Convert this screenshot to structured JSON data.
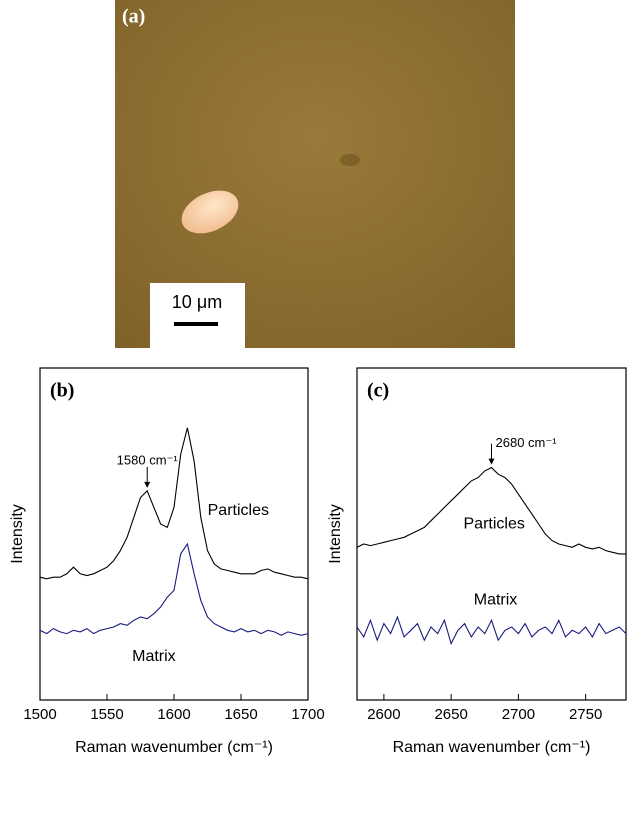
{
  "image_panel": {
    "label": "(a)",
    "scale_bar": "10 μm"
  },
  "chart_data": [
    {
      "type": "line",
      "panel_label": "(b)",
      "x_label": "Raman wavenumber (cm⁻¹)",
      "y_label": "Intensity",
      "xlim": [
        1500,
        1700
      ],
      "xticks": [
        1500,
        1550,
        1600,
        1650,
        1700
      ],
      "ylim": [
        0,
        100
      ],
      "x": [
        1500,
        1505,
        1510,
        1515,
        1520,
        1525,
        1530,
        1535,
        1540,
        1545,
        1550,
        1555,
        1560,
        1565,
        1570,
        1575,
        1580,
        1585,
        1590,
        1595,
        1600,
        1605,
        1610,
        1615,
        1620,
        1625,
        1630,
        1635,
        1640,
        1645,
        1650,
        1655,
        1660,
        1665,
        1670,
        1675,
        1680,
        1685,
        1690,
        1695,
        1700
      ],
      "series": [
        {
          "name": "Particles",
          "color": "#000000",
          "values": [
            37,
            36.5,
            37,
            37,
            38,
            40,
            38,
            37.5,
            38,
            39,
            40,
            42,
            45,
            49,
            55,
            61,
            63,
            58,
            53,
            52,
            58,
            74,
            82,
            72,
            55,
            45,
            41,
            39.5,
            39,
            38.5,
            38,
            38,
            38,
            39,
            39.5,
            38.5,
            38,
            37.5,
            37,
            37,
            36.5
          ]
        },
        {
          "name": "Matrix",
          "color": "#1a1a80",
          "values": [
            21,
            20,
            21.5,
            20.5,
            20,
            21,
            20.5,
            21.5,
            20,
            21,
            21.5,
            22,
            23,
            22.5,
            24,
            25,
            24.5,
            26,
            28,
            31,
            33,
            44,
            47,
            38,
            30,
            25,
            23,
            22,
            21,
            20.5,
            21.5,
            20.5,
            21,
            20,
            21,
            20.5,
            19.5,
            20.5,
            20,
            19.5,
            20
          ]
        }
      ],
      "annotations": [
        {
          "text": "1580 cm⁻¹",
          "x": 1580
        }
      ]
    },
    {
      "type": "line",
      "panel_label": "(c)",
      "x_label": "Raman wavenumber (cm⁻¹)",
      "y_label": "Intensity",
      "xlim": [
        2580,
        2780
      ],
      "xticks": [
        2600,
        2650,
        2700,
        2750
      ],
      "ylim": [
        0,
        100
      ],
      "x": [
        2580,
        2585,
        2590,
        2595,
        2600,
        2605,
        2610,
        2615,
        2620,
        2625,
        2630,
        2635,
        2640,
        2645,
        2650,
        2655,
        2660,
        2665,
        2670,
        2675,
        2680,
        2685,
        2690,
        2695,
        2700,
        2705,
        2710,
        2715,
        2720,
        2725,
        2730,
        2735,
        2740,
        2745,
        2750,
        2755,
        2760,
        2765,
        2770,
        2775,
        2780
      ],
      "series": [
        {
          "name": "Particles",
          "color": "#000000",
          "values": [
            46,
            47,
            46.5,
            47,
            47.5,
            48,
            48.5,
            49,
            50,
            51,
            52,
            54,
            56,
            58,
            60,
            62,
            64,
            66,
            67,
            69,
            70,
            68,
            67,
            65,
            62,
            59,
            56,
            53,
            50,
            48,
            47,
            46.5,
            46,
            47,
            46,
            45.5,
            46,
            45,
            44.5,
            44,
            44
          ]
        },
        {
          "name": "Matrix",
          "color": "#1a1a80",
          "values": [
            22,
            19,
            24,
            18,
            23,
            20,
            25,
            19,
            21,
            23,
            18,
            22,
            20,
            24,
            17,
            21,
            23,
            19,
            22,
            20,
            24,
            18,
            21,
            22,
            20,
            23,
            19,
            21,
            22,
            20,
            24,
            19,
            21,
            20,
            22,
            19,
            23,
            20,
            21,
            22,
            20
          ]
        }
      ],
      "annotations": [
        {
          "text": "2680 cm⁻¹",
          "x": 2680
        }
      ]
    }
  ]
}
